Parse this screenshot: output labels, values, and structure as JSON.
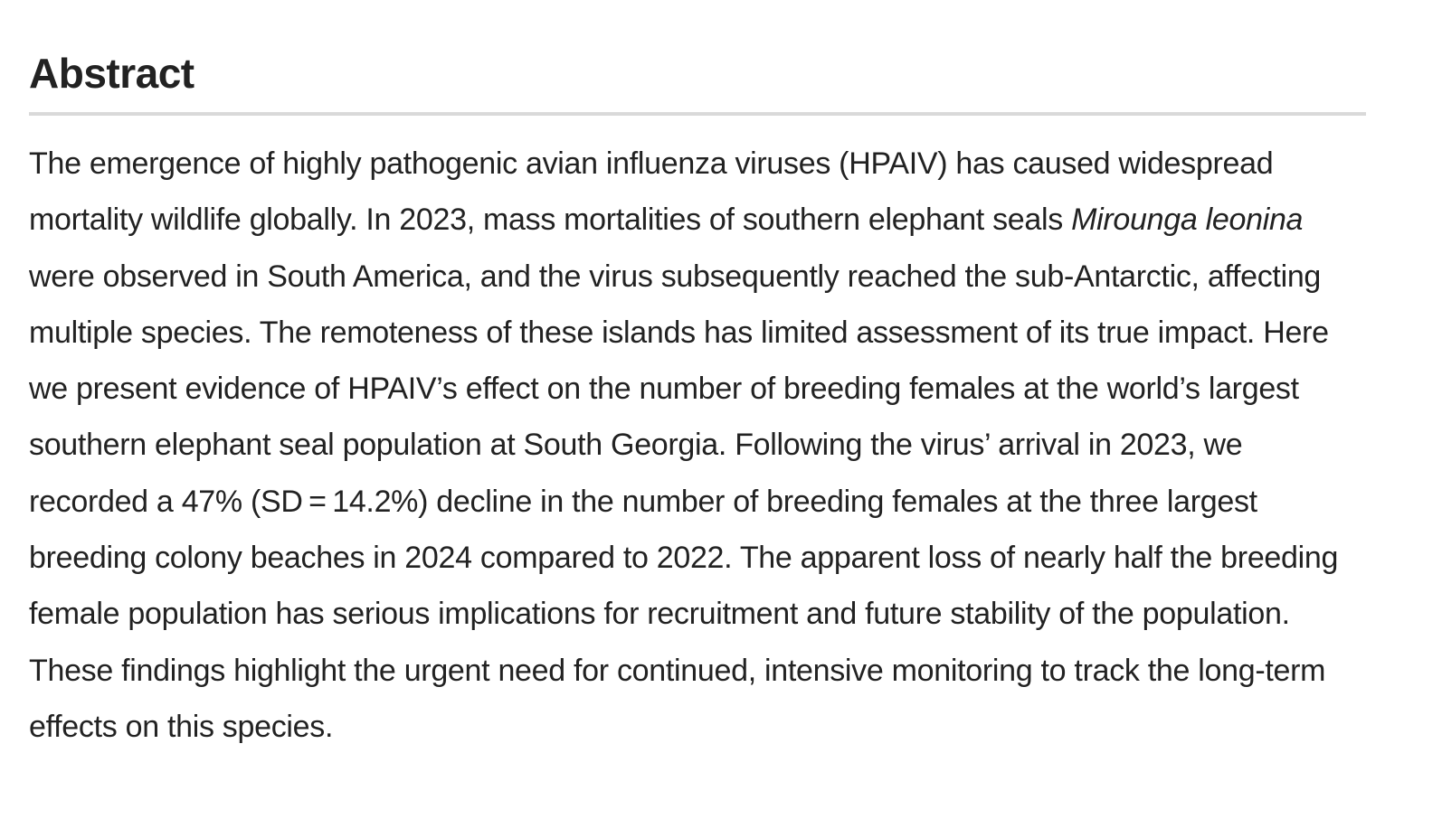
{
  "heading": "Abstract",
  "abstract": {
    "part1": "The emergence of highly pathogenic avian influenza viruses (HPAIV) has caused widespread mortality wildlife globally. In 2023, mass mortalities of southern elephant seals ",
    "species_name": "Mirounga leonina",
    "part2": " were observed in South America, and the virus subsequently reached the sub-Antarctic, affecting multiple species. The remoteness of these islands has limited assessment of its true impact. Here we present evidence of HPAIV’s effect on the number of breeding females at the world’s largest southern elephant seal population at South Georgia. Following the virus’ arrival in 2023, we recorded a 47% (SD = 14.2%) decline in the number of breeding females at the three largest breeding colony beaches in 2024 compared to 2022. The apparent loss of nearly half the breeding female population has serious implications for recruitment and future stability of the population. These findings highlight the urgent need for continued, intensive monitoring to track the long-term effects on this species."
  }
}
